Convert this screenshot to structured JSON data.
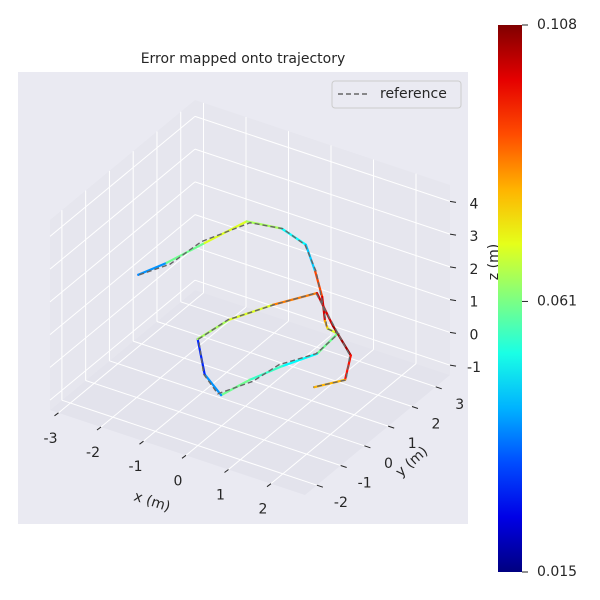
{
  "chart_data": {
    "type": "line3d",
    "title": "Error mapped onto trajectory",
    "xlabel": "x (m)",
    "ylabel": "y (m)",
    "zlabel": "z (m)",
    "xlim": [
      -3.2,
      2.8
    ],
    "ylim": [
      -2.5,
      3.6
    ],
    "zlim": [
      -1.3,
      4.5
    ],
    "xticks": [
      -3,
      -2,
      -1,
      0,
      1,
      2
    ],
    "yticks": [
      -2,
      -1,
      0,
      1,
      2,
      3
    ],
    "zticks": [
      -1,
      0,
      1,
      2,
      3,
      4
    ],
    "grid": true,
    "legend": "upper right",
    "colormap": "jet",
    "clim": [
      0.015,
      0.108
    ],
    "cticks": [
      0.015,
      0.061,
      0.108
    ],
    "series": [
      {
        "name": "reference",
        "color": "#666666",
        "dash": true,
        "x": [
          -2.75,
          -2.25,
          -1.85,
          -1.15,
          -0.55,
          -0.25,
          0.35,
          0.75,
          1.25,
          1.55,
          2.05,
          1.75,
          1.15,
          0.65,
          0.05,
          -0.45,
          -0.85,
          -0.55,
          0.25,
          0.85,
          1.55,
          2.15,
          2.45,
          1.85
        ],
        "y": [
          0.45,
          0.85,
          1.45,
          2.25,
          2.55,
          2.95,
          2.35,
          1.85,
          1.15,
          0.65,
          0.25,
          -0.15,
          -0.65,
          -0.85,
          -1.25,
          -0.95,
          -0.45,
          0.25,
          0.75,
          1.45,
          0.95,
          0.55,
          -0.15,
          -0.45
        ],
        "z": [
          1.25,
          1.55,
          2.05,
          2.45,
          2.35,
          1.75,
          1.55,
          1.25,
          1.15,
          1.35,
          1.65,
          1.15,
          0.85,
          0.25,
          -0.15,
          0.05,
          0.65,
          0.95,
          1.45,
          1.65,
          1.25,
          0.85,
          0.65,
          0.35
        ]
      },
      {
        "x": [
          -2.8,
          -2.3,
          -1.8,
          -1.2,
          -0.6,
          -0.2,
          0.3,
          0.8,
          1.2,
          1.6,
          2.0,
          1.8,
          1.2,
          0.6,
          0.1,
          -0.4,
          -0.9,
          -0.5,
          0.2,
          0.9,
          1.5,
          2.2,
          2.4,
          1.9
        ],
        "y": [
          0.5,
          0.8,
          1.5,
          2.2,
          2.6,
          2.9,
          2.4,
          1.8,
          1.2,
          0.6,
          0.3,
          -0.2,
          -0.6,
          -0.9,
          -1.2,
          -1.0,
          -0.4,
          0.2,
          0.8,
          1.4,
          1.0,
          0.5,
          -0.1,
          -0.5
        ],
        "z": [
          1.2,
          1.6,
          2.0,
          2.5,
          2.3,
          1.8,
          1.5,
          1.3,
          1.1,
          1.4,
          1.6,
          1.2,
          0.8,
          0.3,
          -0.2,
          0.1,
          0.6,
          1.0,
          1.4,
          1.7,
          1.2,
          0.9,
          0.6,
          0.4
        ],
        "error": [
          0.03,
          0.04,
          0.06,
          0.07,
          0.065,
          0.05,
          0.045,
          0.09,
          0.1,
          0.08,
          0.07,
          0.06,
          0.05,
          0.055,
          0.06,
          0.04,
          0.03,
          0.065,
          0.07,
          0.085,
          0.1,
          0.105,
          0.095,
          0.08
        ]
      }
    ]
  }
}
